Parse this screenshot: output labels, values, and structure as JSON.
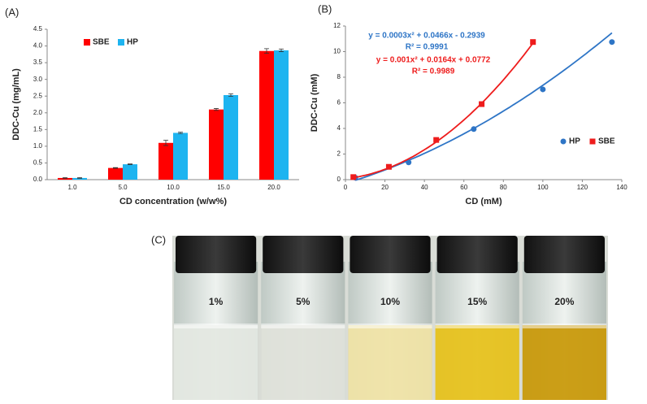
{
  "chart_data": [
    {
      "type": "bar",
      "panel": "(A)",
      "x_label": "CD concentration (w/w%)",
      "y_label": "DDC-Cu (mg/mL)",
      "categories": [
        "1.0",
        "5.0",
        "10.0",
        "15.0",
        "20.0"
      ],
      "series": [
        {
          "name": "SBE",
          "color": "#ff0000",
          "values": [
            0.05,
            0.35,
            1.1,
            2.1,
            3.85
          ],
          "errors": [
            0.01,
            0.01,
            0.08,
            0.03,
            0.07
          ]
        },
        {
          "name": "HP",
          "color": "#1eb4f0",
          "values": [
            0.05,
            0.46,
            1.4,
            2.53,
            3.87
          ],
          "errors": [
            0.01,
            0.01,
            0.02,
            0.04,
            0.04
          ]
        }
      ],
      "ylim": [
        0,
        4.5
      ],
      "yticks": [
        {
          "value": 0,
          "label": "0.0"
        },
        0.5,
        {
          "value": 1,
          "label": "1.0"
        },
        1.5,
        {
          "value": 2,
          "label": "2.0"
        },
        2.5,
        {
          "value": 3,
          "label": "3.0"
        },
        3.5,
        {
          "value": 4,
          "label": "4.0"
        },
        4.5
      ],
      "legend": "upper-left"
    },
    {
      "type": "scatter",
      "panel": "(B)",
      "x_label": "CD (mM)",
      "y_label": "DDC-Cu (mM)",
      "series": [
        {
          "name": "HP",
          "color": "#2e75c6",
          "marker": "circle",
          "x": [
            5,
            32,
            65,
            100,
            135
          ],
          "values": [
            0.15,
            1.35,
            3.95,
            7.05,
            10.75
          ],
          "trendline": {
            "equation": "y = 0.0003x² + 0.0466x - 0.2939",
            "r2": "R² = 0.9991",
            "coefficients": [
              0.0003,
              0.0466,
              -0.2939
            ]
          }
        },
        {
          "name": "SBE",
          "color": "#ee1c1c",
          "marker": "square",
          "x": [
            4,
            22,
            46,
            69,
            95
          ],
          "values": [
            0.2,
            1.0,
            3.1,
            5.9,
            10.75
          ],
          "trendline": {
            "equation": "y = 0.001x² + 0.0164x + 0.0772",
            "r2": "R² = 0.9989",
            "coefficients": [
              0.001,
              0.0164,
              0.0772
            ]
          }
        }
      ],
      "xlim": [
        0,
        140
      ],
      "xticks": [
        0,
        20,
        40,
        60,
        80,
        100,
        120,
        140
      ],
      "ylim": [
        0,
        12
      ],
      "yticks": [
        0,
        2,
        4,
        6,
        8,
        10,
        12
      ],
      "legend": "right"
    }
  ],
  "photo": {
    "panel": "(C)",
    "vials": [
      "1%",
      "5%",
      "10%",
      "15%",
      "20%"
    ]
  }
}
